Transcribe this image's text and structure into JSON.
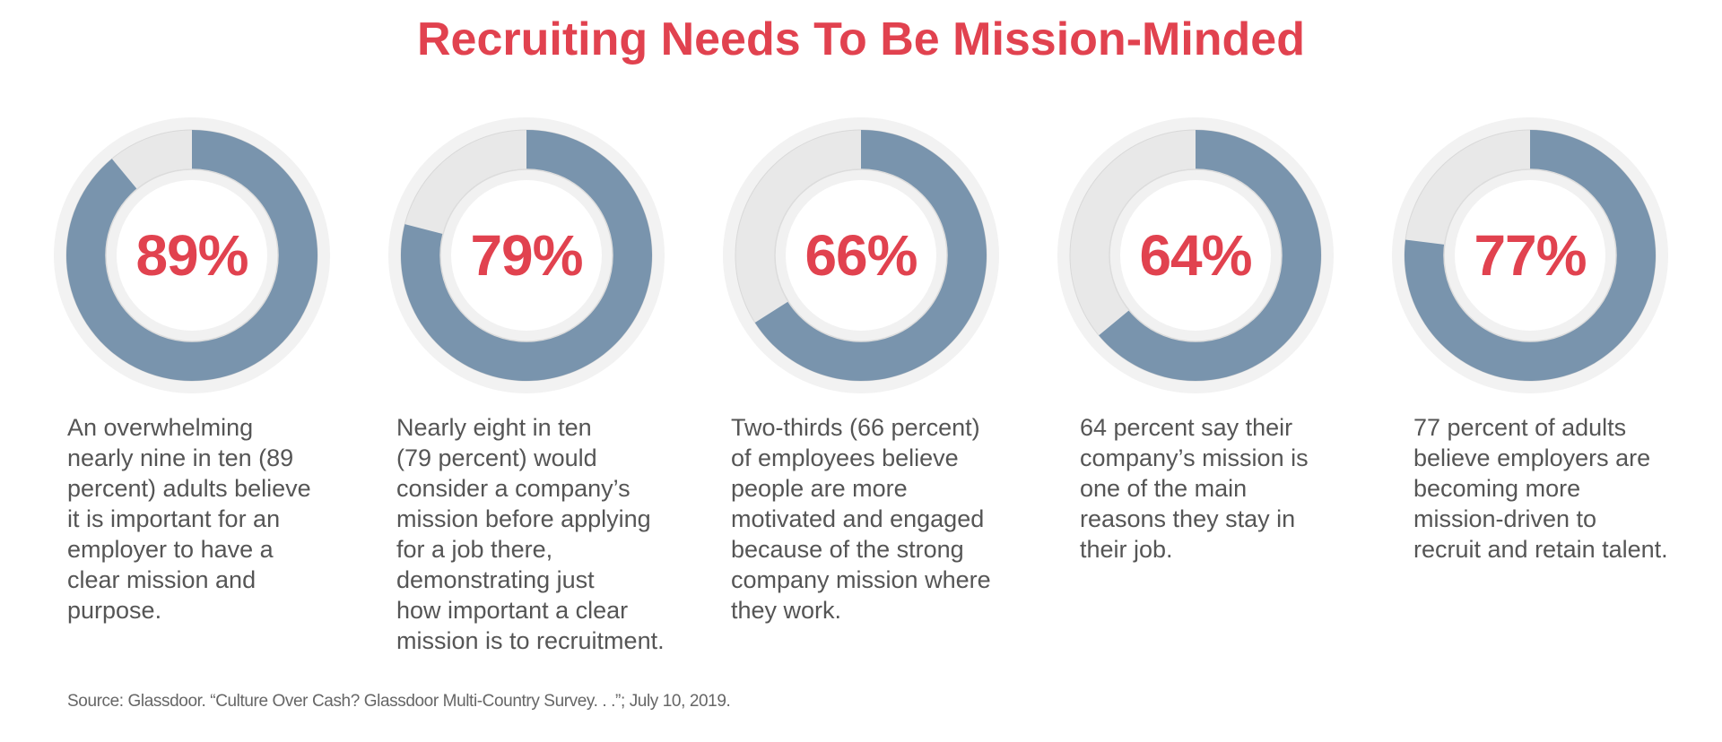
{
  "title": "Recruiting Needs To Be Mission-Minded",
  "colors": {
    "accent_red": "#e1424f",
    "ring_fill": "#7994ad",
    "ring_remainder": "#e8e8e8",
    "halo": "#f2f2f2",
    "text": "#555555"
  },
  "stats": [
    {
      "value": 89,
      "label": "89%",
      "description": "An overwhelming\nnearly nine in ten (89\npercent) adults believe\nit is important for an\nemployer to have a\nclear mission and\npurpose."
    },
    {
      "value": 79,
      "label": "79%",
      "description": "Nearly eight in ten\n(79 percent) would\nconsider a company’s\nmission before applying\nfor a job there,\ndemonstrating just\nhow important a clear\nmission is to recruitment."
    },
    {
      "value": 66,
      "label": "66%",
      "description": "Two-thirds (66 percent)\nof employees believe\npeople are more\nmotivated and engaged\nbecause of the strong\ncompany mission where\nthey work."
    },
    {
      "value": 64,
      "label": "64%",
      "description": "64 percent say their\ncompany’s mission is\none of the main\nreasons they stay in\ntheir job."
    },
    {
      "value": 77,
      "label": "77%",
      "description": "77 percent of adults\nbelieve employers are\nbecoming more\nmission-driven to\nrecruit and retain talent."
    }
  ],
  "source": "Source: Glassdoor. “Culture Over Cash? Glassdoor Multi-Country Survey. . .”; July 10, 2019.",
  "chart_data": {
    "type": "pie",
    "subtype": "donut",
    "title": "Recruiting Needs To Be Mission-Minded",
    "categories": [
      "Important for employer to have clear mission",
      "Consider mission before applying",
      "More motivated/engaged due to strong mission",
      "Mission is main reason to stay",
      "Employers becoming more mission-driven"
    ],
    "values": [
      89,
      79,
      66,
      64,
      77
    ],
    "unit": "%",
    "max": 100,
    "legend": "none",
    "source": "Glassdoor, “Culture Over Cash? Glassdoor Multi-Country Survey. . .”, July 10, 2019"
  }
}
